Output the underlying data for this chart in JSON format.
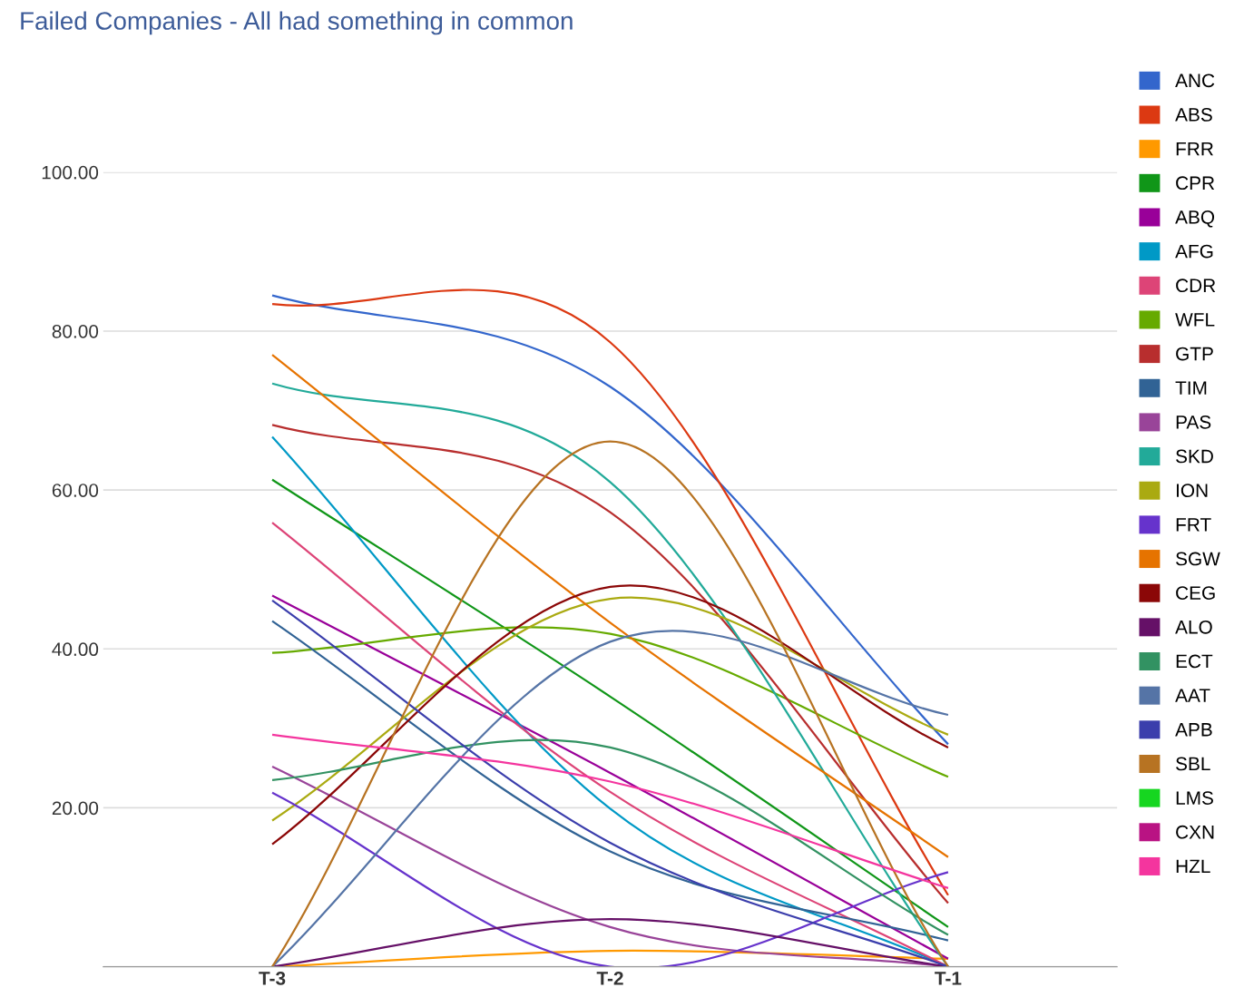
{
  "chart_data": {
    "type": "line",
    "title": "Failed Companies - All had something in common",
    "categories": [
      "T-3",
      "T-2",
      "T-1"
    ],
    "ylim": [
      0,
      100
    ],
    "yticks": [
      {
        "value": 0,
        "label": null
      },
      {
        "value": 20,
        "label": "20.00"
      },
      {
        "value": 40,
        "label": "40.00"
      },
      {
        "value": 60,
        "label": "60.00"
      },
      {
        "value": 80,
        "label": "80.00"
      },
      {
        "value": 100,
        "label": "100.00"
      }
    ],
    "grid": "y",
    "legend": "right",
    "marker": "none",
    "line_style": "solid",
    "series": [
      {
        "name": "ANC",
        "color": "#3366cc",
        "values": [
          84.5,
          73,
          28
        ]
      },
      {
        "name": "ABS",
        "color": "#dc3912",
        "values": [
          83.4,
          78.6,
          9
        ]
      },
      {
        "name": "FRR",
        "color": "#ff9900",
        "values": [
          0,
          2,
          1
        ]
      },
      {
        "name": "CPR",
        "color": "#109618",
        "values": [
          61.3,
          34,
          5
        ]
      },
      {
        "name": "ABQ",
        "color": "#990099",
        "values": [
          46.7,
          24.4,
          1
        ]
      },
      {
        "name": "AFG",
        "color": "#0099c6",
        "values": [
          66.7,
          19.9,
          0
        ]
      },
      {
        "name": "CDR",
        "color": "#dd4477",
        "values": [
          55.9,
          22,
          0
        ]
      },
      {
        "name": "WFL",
        "color": "#66aa00",
        "values": [
          39.5,
          41.9,
          23.9
        ]
      },
      {
        "name": "GTP",
        "color": "#b82e2e",
        "values": [
          68.2,
          57.2,
          8
        ]
      },
      {
        "name": "TIM",
        "color": "#316395",
        "values": [
          43.5,
          14.5,
          3.3
        ]
      },
      {
        "name": "PAS",
        "color": "#994499",
        "values": [
          25.2,
          5,
          0
        ]
      },
      {
        "name": "SKD",
        "color": "#22aa99",
        "values": [
          73.4,
          61,
          0
        ]
      },
      {
        "name": "ION",
        "color": "#aaaa11",
        "values": [
          18.4,
          46.3,
          29.2
        ]
      },
      {
        "name": "FRT",
        "color": "#6633cc",
        "values": [
          21.9,
          0,
          11.9
        ]
      },
      {
        "name": "SGW",
        "color": "#e67300",
        "values": [
          77,
          43.3,
          13.8
        ]
      },
      {
        "name": "CEG",
        "color": "#8b0707",
        "values": [
          15.4,
          47.8,
          27.6
        ]
      },
      {
        "name": "ALO",
        "color": "#651067",
        "values": [
          0,
          6,
          0
        ]
      },
      {
        "name": "ECT",
        "color": "#329262",
        "values": [
          23.5,
          27.6,
          4
        ]
      },
      {
        "name": "AAT",
        "color": "#5574a6",
        "values": [
          0,
          40.9,
          31.7
        ]
      },
      {
        "name": "APB",
        "color": "#3b3eac",
        "values": [
          46.1,
          15.6,
          0
        ]
      },
      {
        "name": "SBL",
        "color": "#b77322",
        "values": [
          0,
          66.1,
          0
        ]
      },
      {
        "name": "LMS",
        "color": "#16d620",
        "values": [
          null,
          null,
          null
        ]
      },
      {
        "name": "CXN",
        "color": "#b91383",
        "values": [
          null,
          null,
          null
        ]
      },
      {
        "name": "HZL",
        "color": "#f4359e",
        "values": [
          29.2,
          23.3,
          9.9
        ]
      }
    ]
  }
}
